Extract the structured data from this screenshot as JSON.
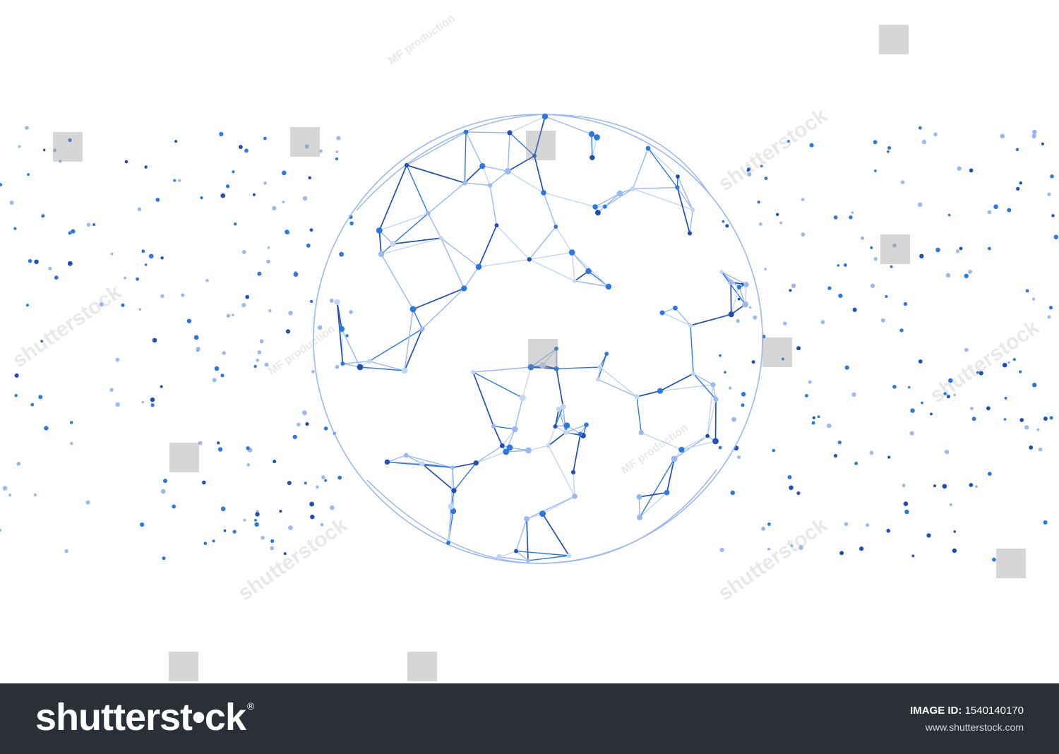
{
  "footer": {
    "brand": "shutterst•ck",
    "brand_mark": "®",
    "image_id_label": "IMAGE ID:",
    "image_id": "1540140170",
    "site": "www.shutterstock.com"
  },
  "watermarks": {
    "brand": "shutterstock",
    "contributor": "MF production"
  },
  "colors": {
    "background": "#ffffff",
    "footer": "#2a2f38",
    "dark_blue": "#1e4fb8",
    "mid_blue": "#2b78e4",
    "light_blue": "#9ab8f2",
    "pale_blue": "#c3d5f7"
  }
}
